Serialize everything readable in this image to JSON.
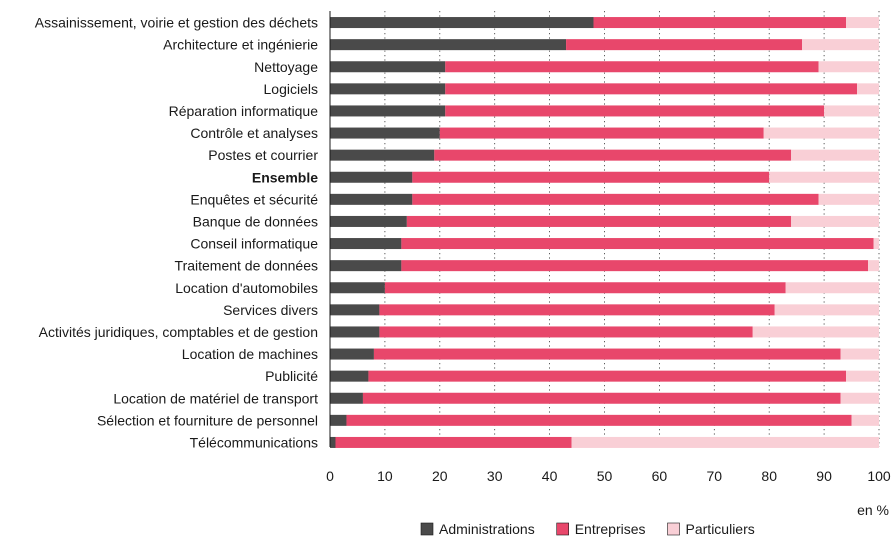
{
  "chart_data": {
    "type": "bar",
    "orientation": "horizontal",
    "stacked": true,
    "categories": [
      "Assainissement, voirie et gestion des déchets",
      "Architecture et ingénierie",
      "Nettoyage",
      "Logiciels",
      "Réparation informatique",
      "Contrôle et analyses",
      "Postes et courrier",
      "Ensemble",
      "Enquêtes et sécurité",
      "Banque de données",
      "Conseil informatique",
      "Traitement de données",
      "Location d'automobiles",
      "Services divers",
      "Activités juridiques, comptables et de gestion",
      "Location de machines",
      "Publicité",
      "Location de matériel de transport",
      "Sélection et fourniture de personnel",
      "Télécommunications"
    ],
    "bold_categories": [
      "Ensemble"
    ],
    "series": [
      {
        "name": "Administrations",
        "color": "#4a4a4a",
        "values": [
          48,
          43,
          21,
          21,
          21,
          20,
          19,
          15,
          15,
          14,
          13,
          13,
          10,
          9,
          9,
          8,
          7,
          6,
          3,
          1
        ]
      },
      {
        "name": "Entreprises",
        "color": "#e8476b",
        "values": [
          46,
          43,
          68,
          75,
          69,
          59,
          65,
          65,
          74,
          70,
          86,
          85,
          73,
          72,
          68,
          85,
          87,
          87,
          92,
          43
        ]
      },
      {
        "name": "Particuliers",
        "color": "#f9cfd6",
        "values": [
          6,
          14,
          11,
          4,
          10,
          21,
          16,
          20,
          11,
          16,
          1,
          2,
          17,
          19,
          23,
          7,
          6,
          7,
          5,
          56
        ]
      }
    ],
    "x_ticks": [
      "0",
      "10",
      "20",
      "30",
      "40",
      "50",
      "60",
      "70",
      "80",
      "90",
      "100"
    ],
    "xlim": [
      0,
      100
    ],
    "unit_label": "en %",
    "grid": "vertical dotted",
    "legend_position": "bottom"
  }
}
